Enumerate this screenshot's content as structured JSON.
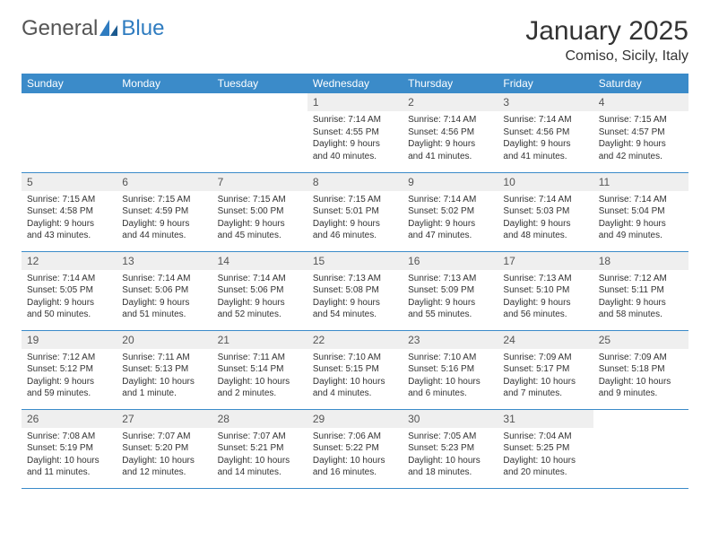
{
  "logo": {
    "text1": "General",
    "text2": "Blue"
  },
  "title": "January 2025",
  "location": "Comiso, Sicily, Italy",
  "colors": {
    "header_bg": "#3b8bc9",
    "header_text": "#ffffff",
    "daynum_bg": "#efefef",
    "border": "#3b8bc9",
    "logo_gray": "#555555",
    "logo_blue": "#2f7cc0"
  },
  "dayHeaders": [
    "Sunday",
    "Monday",
    "Tuesday",
    "Wednesday",
    "Thursday",
    "Friday",
    "Saturday"
  ],
  "weeks": [
    [
      null,
      null,
      null,
      {
        "n": "1",
        "sr": "7:14 AM",
        "ss": "4:55 PM",
        "dl": "9 hours and 40 minutes."
      },
      {
        "n": "2",
        "sr": "7:14 AM",
        "ss": "4:56 PM",
        "dl": "9 hours and 41 minutes."
      },
      {
        "n": "3",
        "sr": "7:14 AM",
        "ss": "4:56 PM",
        "dl": "9 hours and 41 minutes."
      },
      {
        "n": "4",
        "sr": "7:15 AM",
        "ss": "4:57 PM",
        "dl": "9 hours and 42 minutes."
      }
    ],
    [
      {
        "n": "5",
        "sr": "7:15 AM",
        "ss": "4:58 PM",
        "dl": "9 hours and 43 minutes."
      },
      {
        "n": "6",
        "sr": "7:15 AM",
        "ss": "4:59 PM",
        "dl": "9 hours and 44 minutes."
      },
      {
        "n": "7",
        "sr": "7:15 AM",
        "ss": "5:00 PM",
        "dl": "9 hours and 45 minutes."
      },
      {
        "n": "8",
        "sr": "7:15 AM",
        "ss": "5:01 PM",
        "dl": "9 hours and 46 minutes."
      },
      {
        "n": "9",
        "sr": "7:14 AM",
        "ss": "5:02 PM",
        "dl": "9 hours and 47 minutes."
      },
      {
        "n": "10",
        "sr": "7:14 AM",
        "ss": "5:03 PM",
        "dl": "9 hours and 48 minutes."
      },
      {
        "n": "11",
        "sr": "7:14 AM",
        "ss": "5:04 PM",
        "dl": "9 hours and 49 minutes."
      }
    ],
    [
      {
        "n": "12",
        "sr": "7:14 AM",
        "ss": "5:05 PM",
        "dl": "9 hours and 50 minutes."
      },
      {
        "n": "13",
        "sr": "7:14 AM",
        "ss": "5:06 PM",
        "dl": "9 hours and 51 minutes."
      },
      {
        "n": "14",
        "sr": "7:14 AM",
        "ss": "5:06 PM",
        "dl": "9 hours and 52 minutes."
      },
      {
        "n": "15",
        "sr": "7:13 AM",
        "ss": "5:08 PM",
        "dl": "9 hours and 54 minutes."
      },
      {
        "n": "16",
        "sr": "7:13 AM",
        "ss": "5:09 PM",
        "dl": "9 hours and 55 minutes."
      },
      {
        "n": "17",
        "sr": "7:13 AM",
        "ss": "5:10 PM",
        "dl": "9 hours and 56 minutes."
      },
      {
        "n": "18",
        "sr": "7:12 AM",
        "ss": "5:11 PM",
        "dl": "9 hours and 58 minutes."
      }
    ],
    [
      {
        "n": "19",
        "sr": "7:12 AM",
        "ss": "5:12 PM",
        "dl": "9 hours and 59 minutes."
      },
      {
        "n": "20",
        "sr": "7:11 AM",
        "ss": "5:13 PM",
        "dl": "10 hours and 1 minute."
      },
      {
        "n": "21",
        "sr": "7:11 AM",
        "ss": "5:14 PM",
        "dl": "10 hours and 2 minutes."
      },
      {
        "n": "22",
        "sr": "7:10 AM",
        "ss": "5:15 PM",
        "dl": "10 hours and 4 minutes."
      },
      {
        "n": "23",
        "sr": "7:10 AM",
        "ss": "5:16 PM",
        "dl": "10 hours and 6 minutes."
      },
      {
        "n": "24",
        "sr": "7:09 AM",
        "ss": "5:17 PM",
        "dl": "10 hours and 7 minutes."
      },
      {
        "n": "25",
        "sr": "7:09 AM",
        "ss": "5:18 PM",
        "dl": "10 hours and 9 minutes."
      }
    ],
    [
      {
        "n": "26",
        "sr": "7:08 AM",
        "ss": "5:19 PM",
        "dl": "10 hours and 11 minutes."
      },
      {
        "n": "27",
        "sr": "7:07 AM",
        "ss": "5:20 PM",
        "dl": "10 hours and 12 minutes."
      },
      {
        "n": "28",
        "sr": "7:07 AM",
        "ss": "5:21 PM",
        "dl": "10 hours and 14 minutes."
      },
      {
        "n": "29",
        "sr": "7:06 AM",
        "ss": "5:22 PM",
        "dl": "10 hours and 16 minutes."
      },
      {
        "n": "30",
        "sr": "7:05 AM",
        "ss": "5:23 PM",
        "dl": "10 hours and 18 minutes."
      },
      {
        "n": "31",
        "sr": "7:04 AM",
        "ss": "5:25 PM",
        "dl": "10 hours and 20 minutes."
      },
      null
    ]
  ],
  "labels": {
    "sunrise": "Sunrise: ",
    "sunset": "Sunset: ",
    "daylight": "Daylight: "
  }
}
